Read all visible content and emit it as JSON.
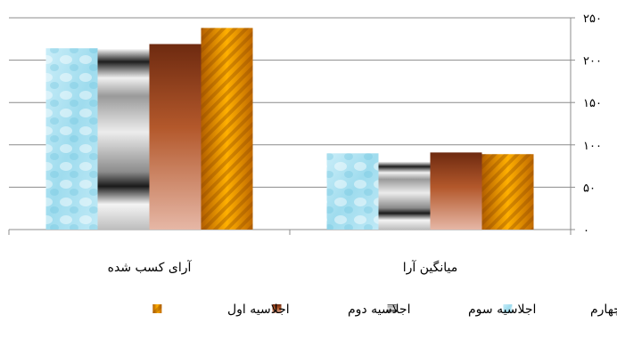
{
  "chart_data": {
    "type": "bar",
    "categories": [
      "میانگین آرا",
      "آرای کسب شده"
    ],
    "series": [
      {
        "name": "اجلاسیه چهارم",
        "values": [
          90,
          214
        ]
      },
      {
        "name": "اجلاسیه سوم",
        "values": [
          80,
          213
        ]
      },
      {
        "name": "اجلاسیه دوم",
        "values": [
          91,
          219
        ]
      },
      {
        "name": "اجلاسیه اول",
        "values": [
          89,
          238
        ]
      }
    ],
    "yticks": [
      "۰",
      "۵۰",
      "۱۰۰",
      "۱۵۰",
      "۲۰۰",
      "۲۵۰"
    ],
    "ylim": [
      0,
      250
    ],
    "grid": true,
    "y_axis_side": "right",
    "legend_position": "bottom"
  }
}
